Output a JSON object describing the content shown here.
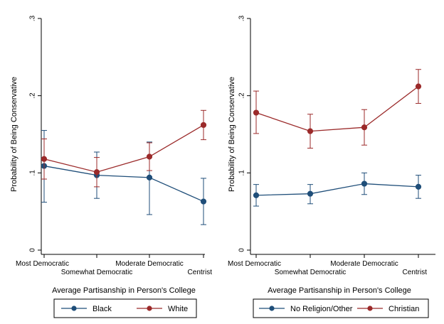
{
  "chart_data": [
    {
      "type": "line",
      "categories": [
        "Most Democratic",
        "Somewhat Democratic",
        "Moderate Democratic",
        "Centrist"
      ],
      "xlabel": "Average Partisanship in Person's College",
      "ylabel": "Probability of Being Conservative",
      "ylim": [
        0,
        0.3
      ],
      "yticks": [
        0,
        0.1,
        0.2,
        0.3
      ],
      "ytick_labels": [
        "0",
        ".1",
        ".2",
        ".3"
      ],
      "error_bars": true,
      "legend_placement": "bottom",
      "series": [
        {
          "name": "Black",
          "color": "#1f4e79",
          "values": [
            0.109,
            0.097,
            0.094,
            0.063
          ],
          "lower": [
            0.062,
            0.067,
            0.046,
            0.033
          ],
          "upper": [
            0.155,
            0.127,
            0.14,
            0.093
          ]
        },
        {
          "name": "White",
          "color": "#9b2a2a",
          "values": [
            0.118,
            0.101,
            0.121,
            0.162
          ],
          "lower": [
            0.092,
            0.082,
            0.103,
            0.143
          ],
          "upper": [
            0.144,
            0.12,
            0.139,
            0.181
          ]
        }
      ]
    },
    {
      "type": "line",
      "categories": [
        "Most Democratic",
        "Somewhat Democratic",
        "Moderate Democratic",
        "Centrist"
      ],
      "xlabel": "Average Partisanship in Person's College",
      "ylabel": "Probability of Being Conservative",
      "ylim": [
        0,
        0.3
      ],
      "yticks": [
        0,
        0.1,
        0.2,
        0.3
      ],
      "ytick_labels": [
        "0",
        ".1",
        ".2",
        ".3"
      ],
      "error_bars": true,
      "legend_placement": "bottom",
      "series": [
        {
          "name": "No Religion/Other",
          "color": "#1f4e79",
          "values": [
            0.071,
            0.073,
            0.086,
            0.082
          ],
          "lower": [
            0.057,
            0.06,
            0.072,
            0.067
          ],
          "upper": [
            0.085,
            0.085,
            0.1,
            0.097
          ]
        },
        {
          "name": "Christian",
          "color": "#9b2a2a",
          "values": [
            0.178,
            0.154,
            0.159,
            0.212
          ],
          "lower": [
            0.151,
            0.132,
            0.136,
            0.19
          ],
          "upper": [
            0.206,
            0.176,
            0.182,
            0.234
          ]
        }
      ]
    }
  ]
}
